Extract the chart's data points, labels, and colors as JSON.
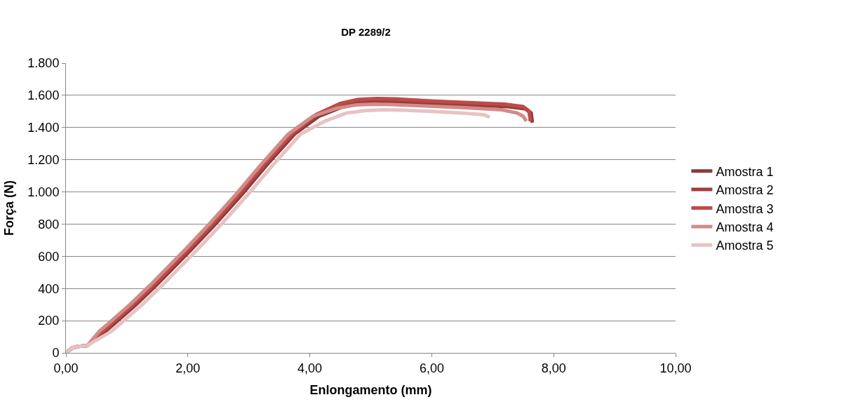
{
  "chart_data": {
    "type": "line",
    "title": "DP 2289/2",
    "xlabel": "Enlongamento (mm)",
    "ylabel": "Força (N)",
    "xlim": [
      0,
      10
    ],
    "xticks": [
      {
        "value": 0,
        "label": "0,00"
      },
      {
        "value": 2,
        "label": "2,00"
      },
      {
        "value": 4,
        "label": "4,00"
      },
      {
        "value": 6,
        "label": "6,00"
      },
      {
        "value": 8,
        "label": "8,00"
      },
      {
        "value": 10,
        "label": "10,00"
      }
    ],
    "ylim": [
      0,
      1800
    ],
    "yticks": [
      0,
      200,
      400,
      600,
      800,
      {
        "value": 1000,
        "label": "1.000"
      },
      {
        "value": 1200,
        "label": "1.200"
      },
      {
        "value": 1400,
        "label": "1.400"
      },
      {
        "value": 1600,
        "label": "1.600"
      },
      {
        "value": 1800,
        "label": "1.800"
      }
    ],
    "grid": "y",
    "legend": "right",
    "marker": "none",
    "line_style": "solid",
    "series": [
      {
        "name": "Amostra 1",
        "color": "#8b3a3a",
        "x": [
          0,
          0.1,
          0.2,
          0.35,
          0.65,
          0.82,
          1.15,
          1.48,
          2.05,
          2.45,
          2.9,
          3.3,
          3.75,
          4.15,
          4.55,
          4.85,
          5.15,
          5.45,
          6.05,
          6.65,
          7.25,
          7.55,
          7.63,
          7.65
        ],
        "values": [
          0,
          30,
          40,
          45,
          135,
          190,
          300,
          420,
          640,
          800,
          990,
          1170,
          1360,
          1470,
          1530,
          1555,
          1560,
          1558,
          1548,
          1540,
          1530,
          1515,
          1490,
          1430
        ]
      },
      {
        "name": "Amostra 2",
        "color": "#a33c3c",
        "x": [
          0,
          0.1,
          0.2,
          0.35,
          0.62,
          0.79,
          1.12,
          1.45,
          2.02,
          2.42,
          2.87,
          3.27,
          3.72,
          4.12,
          4.52,
          4.82,
          5.12,
          5.42,
          6.02,
          6.62,
          7.22,
          7.52,
          7.6,
          7.62
        ],
        "values": [
          0,
          30,
          40,
          45,
          135,
          190,
          300,
          420,
          640,
          800,
          990,
          1170,
          1360,
          1475,
          1540,
          1565,
          1570,
          1568,
          1556,
          1546,
          1536,
          1522,
          1495,
          1440
        ]
      },
      {
        "name": "Amostra 3",
        "color": "#be4b48",
        "x": [
          0,
          0.1,
          0.2,
          0.35,
          0.6,
          0.77,
          1.1,
          1.43,
          2.0,
          2.4,
          2.85,
          3.25,
          3.7,
          4.1,
          4.5,
          4.8,
          5.1,
          5.4,
          6.0,
          6.6,
          7.2,
          7.5,
          7.6,
          7.62
        ],
        "values": [
          0,
          30,
          40,
          45,
          135,
          190,
          300,
          420,
          640,
          800,
          990,
          1170,
          1360,
          1480,
          1550,
          1575,
          1580,
          1578,
          1565,
          1555,
          1545,
          1530,
          1500,
          1440
        ]
      },
      {
        "name": "Amostra 4",
        "color": "#d18b88",
        "x": [
          0,
          0.1,
          0.2,
          0.35,
          0.55,
          0.72,
          1.05,
          1.38,
          1.95,
          2.35,
          2.8,
          3.2,
          3.65,
          4.05,
          4.45,
          4.75,
          5.05,
          5.35,
          5.95,
          6.55,
          7.15,
          7.4,
          7.5,
          7.55
        ],
        "values": [
          0,
          30,
          40,
          45,
          135,
          190,
          300,
          420,
          640,
          800,
          990,
          1170,
          1360,
          1470,
          1520,
          1540,
          1545,
          1543,
          1533,
          1523,
          1510,
          1490,
          1470,
          1440
        ]
      },
      {
        "name": "Amostra 5",
        "color": "#e6c3c3",
        "x": [
          0,
          0.1,
          0.2,
          0.35,
          0.75,
          0.92,
          1.25,
          1.58,
          2.15,
          2.55,
          3.0,
          3.4,
          3.85,
          4.25,
          4.6,
          4.9,
          5.2,
          5.5,
          6.0,
          6.5,
          6.85,
          6.95
        ],
        "values": [
          0,
          30,
          40,
          45,
          135,
          190,
          300,
          420,
          640,
          800,
          990,
          1170,
          1360,
          1440,
          1490,
          1505,
          1510,
          1508,
          1500,
          1490,
          1480,
          1465
        ]
      }
    ]
  }
}
